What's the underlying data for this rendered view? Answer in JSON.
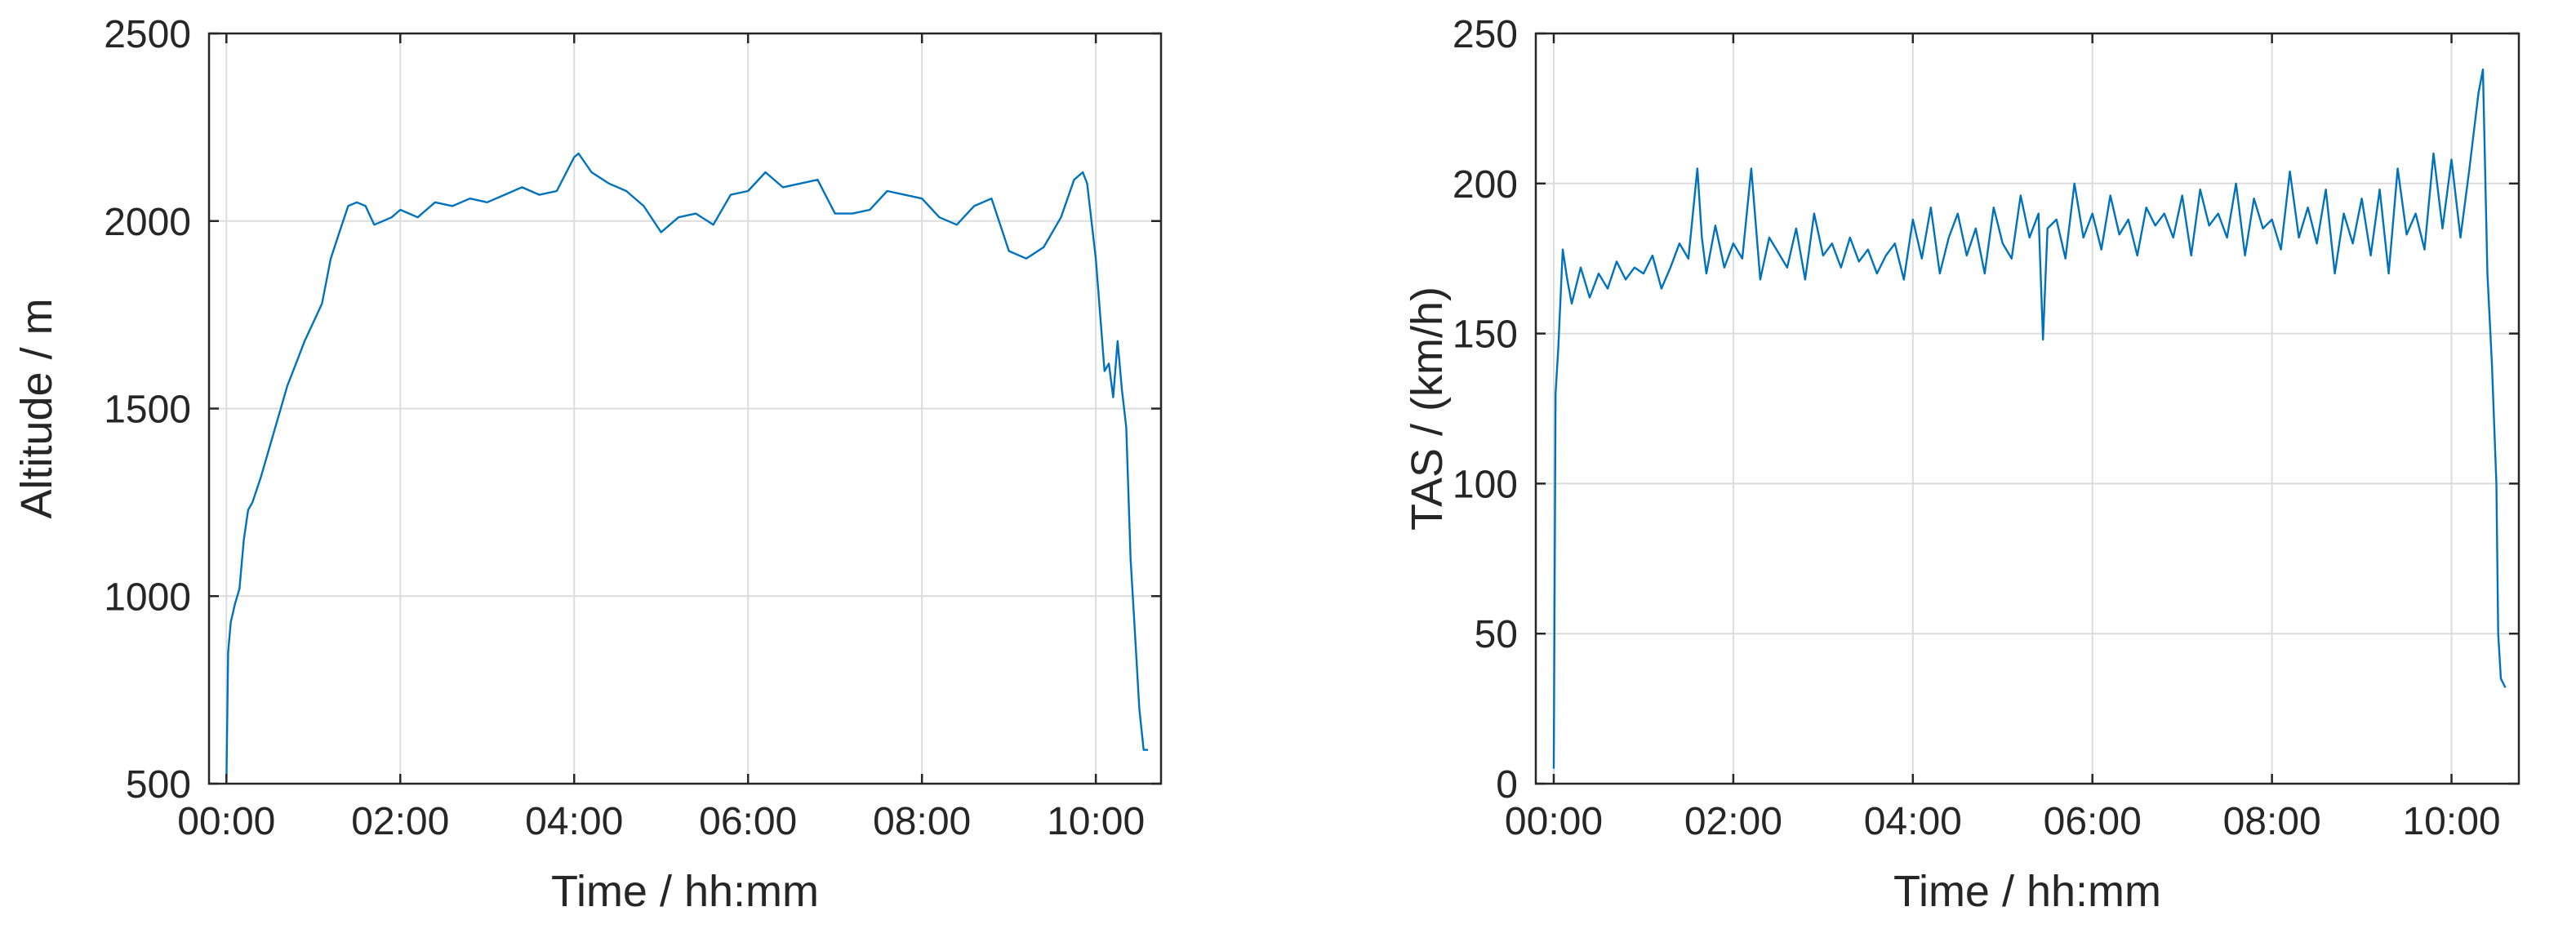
{
  "figure": {
    "background": "#ffffff",
    "axis_color": "#262626",
    "grid_color": "#dcdcdc"
  },
  "chart_data": [
    {
      "id": "altitude",
      "type": "line",
      "title": "",
      "xlabel": "Time / hh:mm",
      "ylabel": "Altitude / m",
      "x_unit": "hours",
      "xlim": [
        -0.2,
        10.75
      ],
      "ylim": [
        500,
        2500
      ],
      "xticks": [
        0,
        2,
        4,
        6,
        8,
        10
      ],
      "xtick_labels": [
        "00:00",
        "02:00",
        "04:00",
        "06:00",
        "08:00",
        "10:00"
      ],
      "yticks": [
        500,
        1000,
        1500,
        2000,
        2500
      ],
      "ytick_labels": [
        "500",
        "1000",
        "1500",
        "2000",
        "2500"
      ],
      "grid": true,
      "legend": "none",
      "series": [
        {
          "color": "#0072bd",
          "x": [
            0.0,
            0.02,
            0.05,
            0.1,
            0.15,
            0.2,
            0.25,
            0.3,
            0.4,
            0.5,
            0.6,
            0.7,
            0.8,
            0.9,
            1.0,
            1.1,
            1.2,
            1.3,
            1.4,
            1.5,
            1.6,
            1.7,
            1.8,
            1.9,
            2.0,
            2.2,
            2.4,
            2.6,
            2.8,
            3.0,
            3.2,
            3.4,
            3.6,
            3.8,
            4.0,
            4.05,
            4.2,
            4.4,
            4.6,
            4.8,
            5.0,
            5.2,
            5.4,
            5.6,
            5.8,
            6.0,
            6.2,
            6.4,
            6.6,
            6.8,
            7.0,
            7.2,
            7.4,
            7.6,
            7.8,
            8.0,
            8.2,
            8.4,
            8.6,
            8.8,
            9.0,
            9.2,
            9.4,
            9.6,
            9.75,
            9.85,
            9.9,
            10.0,
            10.1,
            10.15,
            10.2,
            10.25,
            10.3,
            10.35,
            10.4,
            10.45,
            10.5,
            10.55,
            10.6
          ],
          "y": [
            500,
            850,
            930,
            980,
            1020,
            1150,
            1230,
            1250,
            1320,
            1400,
            1480,
            1560,
            1620,
            1680,
            1730,
            1780,
            1900,
            1970,
            2040,
            2050,
            2040,
            1990,
            2000,
            2010,
            2030,
            2010,
            2050,
            2040,
            2060,
            2050,
            2070,
            2090,
            2070,
            2080,
            2170,
            2180,
            2130,
            2100,
            2080,
            2040,
            1970,
            2010,
            2020,
            1990,
            2070,
            2080,
            2130,
            2090,
            2100,
            2110,
            2020,
            2020,
            2030,
            2080,
            2070,
            2060,
            2010,
            1990,
            2040,
            2060,
            1920,
            1900,
            1930,
            2010,
            2110,
            2130,
            2100,
            1900,
            1600,
            1620,
            1530,
            1680,
            1550,
            1450,
            1100,
            900,
            700,
            590,
            590
          ]
        }
      ]
    },
    {
      "id": "tas",
      "type": "line",
      "title": "",
      "xlabel": "Time / hh:mm",
      "ylabel": "TAS / (km/h)",
      "x_unit": "hours",
      "xlim": [
        -0.2,
        10.75
      ],
      "ylim": [
        0,
        250
      ],
      "xticks": [
        0,
        2,
        4,
        6,
        8,
        10
      ],
      "xtick_labels": [
        "00:00",
        "02:00",
        "04:00",
        "06:00",
        "08:00",
        "10:00"
      ],
      "yticks": [
        0,
        50,
        100,
        150,
        200,
        250
      ],
      "ytick_labels": [
        "0",
        "50",
        "100",
        "150",
        "200",
        "250"
      ],
      "grid": true,
      "legend": "none",
      "series": [
        {
          "color": "#0072bd",
          "x": [
            0.0,
            0.02,
            0.05,
            0.1,
            0.15,
            0.2,
            0.3,
            0.4,
            0.5,
            0.6,
            0.7,
            0.8,
            0.9,
            1.0,
            1.1,
            1.2,
            1.3,
            1.4,
            1.5,
            1.6,
            1.65,
            1.7,
            1.8,
            1.9,
            2.0,
            2.1,
            2.2,
            2.3,
            2.4,
            2.5,
            2.6,
            2.7,
            2.8,
            2.9,
            3.0,
            3.1,
            3.2,
            3.3,
            3.4,
            3.5,
            3.6,
            3.7,
            3.8,
            3.9,
            4.0,
            4.1,
            4.2,
            4.3,
            4.4,
            4.5,
            4.6,
            4.7,
            4.8,
            4.9,
            5.0,
            5.1,
            5.2,
            5.3,
            5.4,
            5.45,
            5.5,
            5.6,
            5.7,
            5.8,
            5.9,
            6.0,
            6.1,
            6.2,
            6.3,
            6.4,
            6.5,
            6.6,
            6.7,
            6.8,
            6.9,
            7.0,
            7.1,
            7.2,
            7.3,
            7.4,
            7.5,
            7.6,
            7.7,
            7.8,
            7.9,
            8.0,
            8.1,
            8.2,
            8.3,
            8.4,
            8.5,
            8.6,
            8.7,
            8.8,
            8.9,
            9.0,
            9.1,
            9.2,
            9.3,
            9.4,
            9.5,
            9.6,
            9.7,
            9.8,
            9.9,
            10.0,
            10.1,
            10.2,
            10.3,
            10.35,
            10.4,
            10.45,
            10.5,
            10.52,
            10.55,
            10.6
          ],
          "y": [
            5,
            130,
            145,
            178,
            168,
            160,
            172,
            162,
            170,
            165,
            174,
            168,
            172,
            170,
            176,
            165,
            172,
            180,
            175,
            205,
            182,
            170,
            186,
            172,
            180,
            175,
            205,
            168,
            182,
            177,
            172,
            185,
            168,
            190,
            176,
            180,
            172,
            182,
            174,
            178,
            170,
            176,
            180,
            168,
            188,
            175,
            192,
            170,
            182,
            190,
            176,
            185,
            170,
            192,
            180,
            175,
            196,
            182,
            190,
            148,
            185,
            188,
            175,
            200,
            182,
            190,
            178,
            196,
            183,
            188,
            176,
            192,
            186,
            190,
            182,
            196,
            176,
            198,
            186,
            190,
            182,
            200,
            176,
            195,
            185,
            188,
            178,
            204,
            182,
            192,
            180,
            198,
            170,
            190,
            180,
            195,
            176,
            198,
            170,
            205,
            183,
            190,
            178,
            210,
            185,
            208,
            182,
            205,
            230,
            238,
            170,
            140,
            100,
            50,
            35,
            32
          ]
        }
      ]
    }
  ]
}
